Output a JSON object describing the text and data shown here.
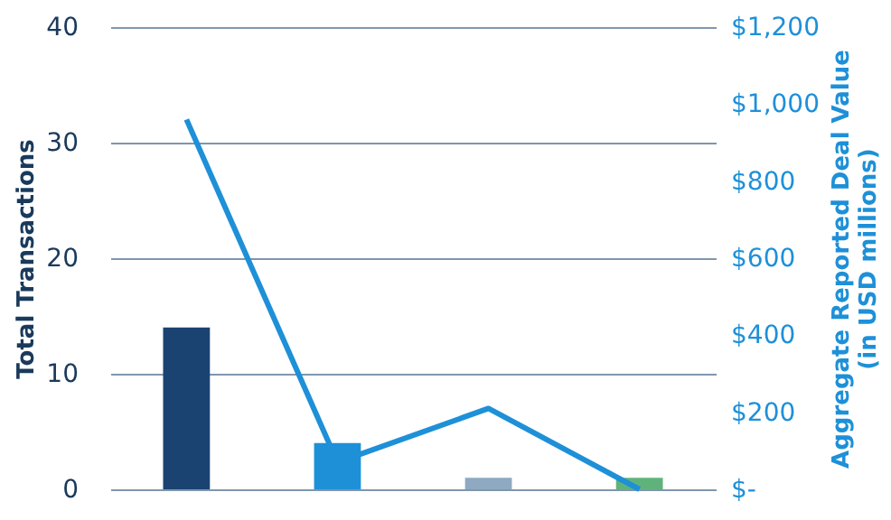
{
  "chart_data": {
    "type": "bar",
    "ylabel": "Total Transactions",
    "y2label": "Aggregate Reported Deal Value\n(in USD millions)",
    "categories": [
      null,
      null,
      null,
      null
    ],
    "series": [
      {
        "colors": [
          "#1a4372",
          "#1e90d8",
          "#8ea9c1",
          "#5fb37a"
        ],
        "values": [
          14,
          4,
          1,
          1
        ]
      },
      {
        "type": "line",
        "axis": "y2",
        "color": "#1e90d8",
        "values": [
          960,
          70,
          210,
          0
        ]
      }
    ],
    "ylim": [
      0,
      40
    ],
    "yticks": [
      0,
      10,
      20,
      30,
      40
    ],
    "y2lim": [
      0,
      1200
    ],
    "y2ticks": [
      {
        "value": 0,
        "label": "$-"
      },
      {
        "value": 200,
        "label": "$200"
      },
      {
        "value": 400,
        "label": "$400"
      },
      {
        "value": 600,
        "label": "$600"
      },
      {
        "value": 800,
        "label": "$800"
      },
      {
        "value": 1000,
        "label": "$1,000"
      },
      {
        "value": 1200,
        "label": "$1,200"
      }
    ],
    "grid": "y"
  }
}
